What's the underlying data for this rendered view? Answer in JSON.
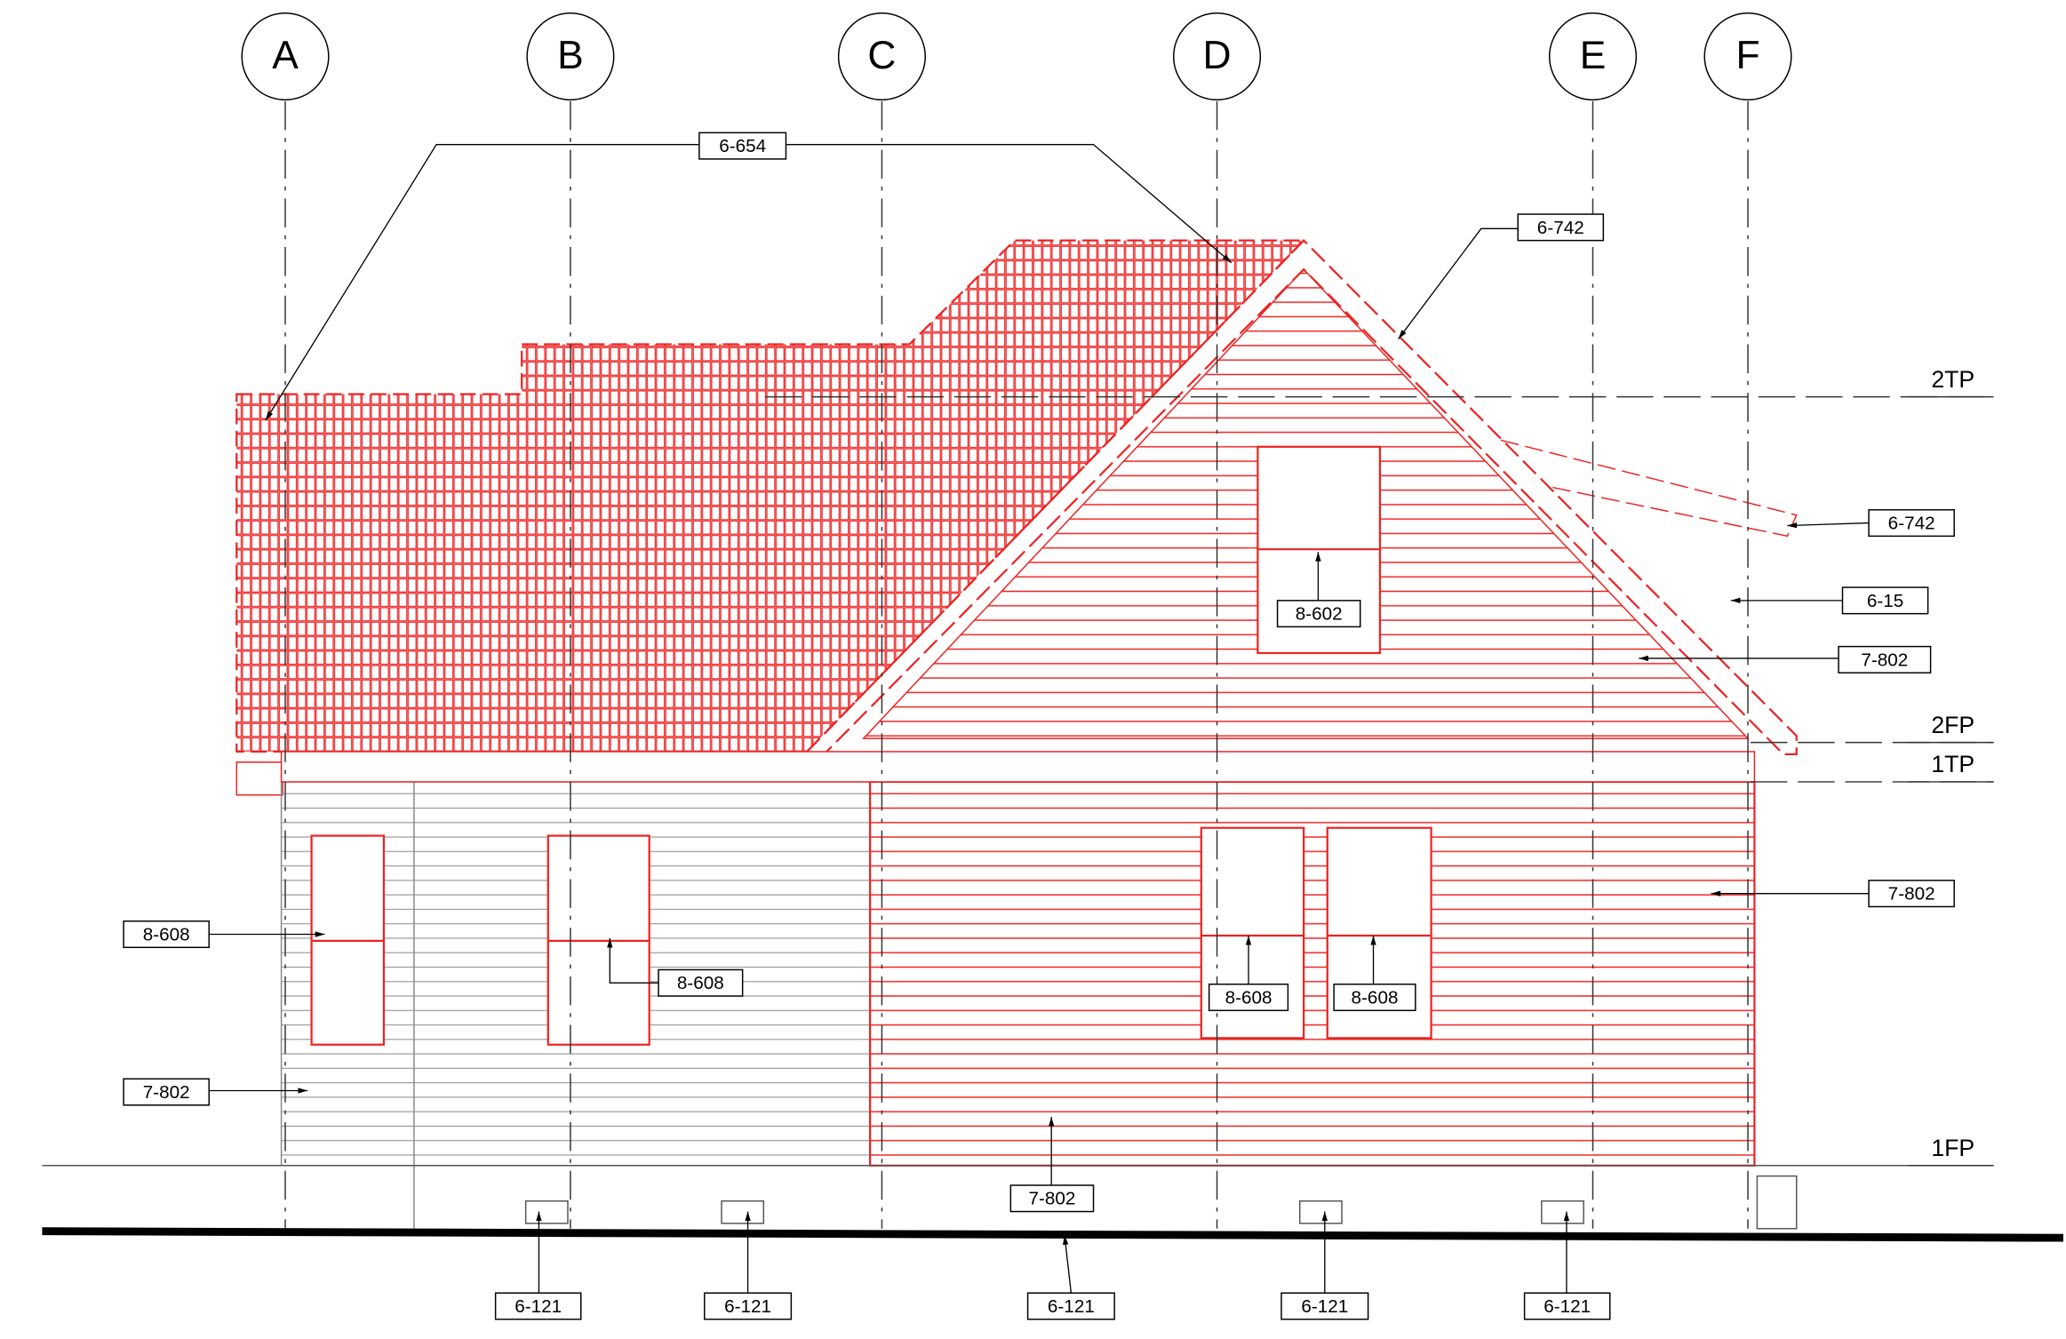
{
  "grid_lines": [
    "A",
    "B",
    "C",
    "D",
    "E",
    "F"
  ],
  "levels": [
    "2TP",
    "2FP",
    "1TP",
    "1FP"
  ],
  "tags": [
    "6-654",
    "6-742",
    "6-742",
    "6-15",
    "7-802",
    "8-602",
    "7-802",
    "8-608",
    "8-608",
    "8-608",
    "8-608",
    "7-802",
    "7-802",
    "6-121",
    "6-121",
    "6-121",
    "6-121",
    "6-121"
  ]
}
